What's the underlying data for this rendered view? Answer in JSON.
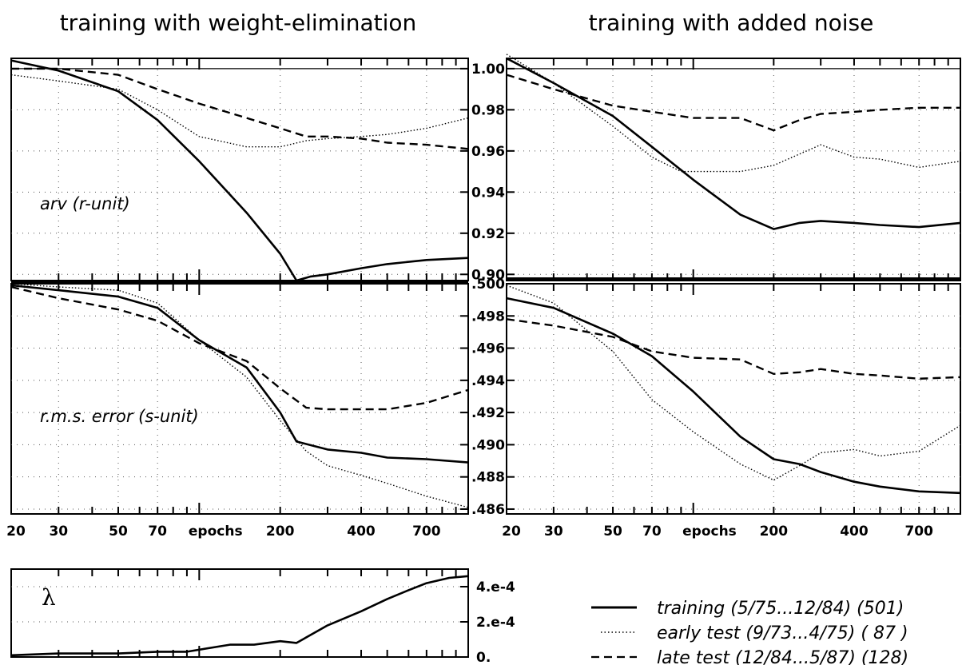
{
  "titles": {
    "left": "training with weight-elimination",
    "right": "training with added noise"
  },
  "panel_labels": {
    "arv": "arv (r-unit)",
    "rms": "r.m.s. error (s-unit)",
    "lambda": "λ"
  },
  "x_axis": {
    "label": "epochs",
    "ticks": [
      "20",
      "30",
      "50",
      "70",
      "200",
      "400",
      "700"
    ]
  },
  "y_ticks": {
    "arv": [
      "1.00",
      "0.98",
      "0.96",
      "0.94",
      "0.92",
      "0.90"
    ],
    "rms": [
      ".500",
      ".498",
      ".496",
      ".494",
      ".492",
      ".490",
      ".488",
      ".486"
    ],
    "lambda": [
      "4.e-4",
      "2.e-4",
      "0."
    ]
  },
  "legend": [
    {
      "label": "training  (5/75...12/84)  (501)",
      "style": "solid"
    },
    {
      "label": "early test  (9/73...4/75)  ( 87 )",
      "style": "dotted"
    },
    {
      "label": "late test  (12/84...5/87)  (128)",
      "style": "dashed"
    }
  ],
  "chart_data": [
    {
      "type": "line",
      "title": "training with weight-elimination",
      "ylabel": "arv (r-unit)",
      "xlabel": "epochs",
      "xscale": "log",
      "xlim": [
        20,
        1000
      ],
      "ylim": [
        0.897,
        1.005
      ],
      "grid": true,
      "series": [
        {
          "name": "training",
          "style": "solid",
          "points": [
            [
              20,
              1.004
            ],
            [
              30,
              0.999
            ],
            [
              50,
              0.989
            ],
            [
              70,
              0.975
            ],
            [
              100,
              0.955
            ],
            [
              150,
              0.93
            ],
            [
              200,
              0.91
            ],
            [
              230,
              0.897
            ],
            [
              260,
              0.899
            ],
            [
              300,
              0.9
            ],
            [
              400,
              0.903
            ],
            [
              500,
              0.905
            ],
            [
              700,
              0.907
            ],
            [
              1000,
              0.908
            ]
          ]
        },
        {
          "name": "early test",
          "style": "dotted",
          "points": [
            [
              20,
              0.997
            ],
            [
              30,
              0.994
            ],
            [
              50,
              0.99
            ],
            [
              70,
              0.98
            ],
            [
              100,
              0.967
            ],
            [
              150,
              0.962
            ],
            [
              200,
              0.962
            ],
            [
              250,
              0.965
            ],
            [
              300,
              0.966
            ],
            [
              400,
              0.967
            ],
            [
              500,
              0.968
            ],
            [
              700,
              0.971
            ],
            [
              1000,
              0.976
            ]
          ]
        },
        {
          "name": "late test",
          "style": "dashed",
          "points": [
            [
              20,
              1.0
            ],
            [
              30,
              1.0
            ],
            [
              50,
              0.997
            ],
            [
              70,
              0.99
            ],
            [
              100,
              0.983
            ],
            [
              150,
              0.976
            ],
            [
              200,
              0.971
            ],
            [
              250,
              0.967
            ],
            [
              300,
              0.967
            ],
            [
              400,
              0.966
            ],
            [
              500,
              0.964
            ],
            [
              700,
              0.963
            ],
            [
              1000,
              0.961
            ]
          ]
        }
      ]
    },
    {
      "type": "line",
      "title": "training with added noise",
      "ylabel": "arv (r-unit)",
      "xlabel": "epochs",
      "xscale": "log",
      "xlim": [
        20,
        1000
      ],
      "ylim": [
        0.897,
        1.005
      ],
      "grid": true,
      "series": [
        {
          "name": "training",
          "style": "solid",
          "points": [
            [
              20,
              1.005
            ],
            [
              30,
              0.993
            ],
            [
              50,
              0.977
            ],
            [
              70,
              0.962
            ],
            [
              100,
              0.946
            ],
            [
              150,
              0.929
            ],
            [
              200,
              0.922
            ],
            [
              250,
              0.925
            ],
            [
              300,
              0.926
            ],
            [
              400,
              0.925
            ],
            [
              500,
              0.924
            ],
            [
              700,
              0.923
            ],
            [
              1000,
              0.925
            ]
          ]
        },
        {
          "name": "early test",
          "style": "dotted",
          "points": [
            [
              20,
              1.007
            ],
            [
              30,
              0.993
            ],
            [
              50,
              0.972
            ],
            [
              70,
              0.957
            ],
            [
              90,
              0.95
            ],
            [
              150,
              0.95
            ],
            [
              200,
              0.953
            ],
            [
              300,
              0.963
            ],
            [
              400,
              0.957
            ],
            [
              500,
              0.956
            ],
            [
              700,
              0.952
            ],
            [
              1000,
              0.955
            ]
          ]
        },
        {
          "name": "late test",
          "style": "dashed",
          "points": [
            [
              20,
              0.997
            ],
            [
              30,
              0.99
            ],
            [
              50,
              0.982
            ],
            [
              70,
              0.979
            ],
            [
              100,
              0.976
            ],
            [
              150,
              0.976
            ],
            [
              200,
              0.97
            ],
            [
              250,
              0.975
            ],
            [
              300,
              0.978
            ],
            [
              400,
              0.979
            ],
            [
              500,
              0.98
            ],
            [
              700,
              0.981
            ],
            [
              1000,
              0.981
            ]
          ]
        }
      ]
    },
    {
      "type": "line",
      "ylabel": "r.m.s. error (s-unit)",
      "xlabel": "epochs",
      "xscale": "log",
      "xlim": [
        20,
        1000
      ],
      "ylim": [
        0.4857,
        0.5
      ],
      "grid": true,
      "series": [
        {
          "name": "training",
          "style": "solid",
          "points": [
            [
              20,
              0.4999
            ],
            [
              30,
              0.4996
            ],
            [
              50,
              0.4992
            ],
            [
              70,
              0.4985
            ],
            [
              100,
              0.4965
            ],
            [
              150,
              0.4948
            ],
            [
              200,
              0.492
            ],
            [
              230,
              0.4902
            ],
            [
              300,
              0.4897
            ],
            [
              400,
              0.4895
            ],
            [
              500,
              0.4892
            ],
            [
              700,
              0.4891
            ],
            [
              1000,
              0.4889
            ]
          ]
        },
        {
          "name": "early test",
          "style": "dotted",
          "points": [
            [
              20,
              0.5
            ],
            [
              30,
              0.4998
            ],
            [
              50,
              0.4996
            ],
            [
              70,
              0.4988
            ],
            [
              100,
              0.4965
            ],
            [
              150,
              0.4942
            ],
            [
              200,
              0.4915
            ],
            [
              250,
              0.4896
            ],
            [
              300,
              0.4887
            ],
            [
              400,
              0.4881
            ],
            [
              500,
              0.4876
            ],
            [
              700,
              0.4868
            ],
            [
              1000,
              0.4861
            ]
          ]
        },
        {
          "name": "late test",
          "style": "dashed",
          "points": [
            [
              20,
              0.4998
            ],
            [
              30,
              0.4991
            ],
            [
              50,
              0.4984
            ],
            [
              70,
              0.4977
            ],
            [
              100,
              0.4963
            ],
            [
              150,
              0.4952
            ],
            [
              200,
              0.4935
            ],
            [
              250,
              0.4923
            ],
            [
              300,
              0.4922
            ],
            [
              400,
              0.4922
            ],
            [
              500,
              0.4922
            ],
            [
              700,
              0.4926
            ],
            [
              1000,
              0.4934
            ]
          ]
        }
      ]
    },
    {
      "type": "line",
      "ylabel": "r.m.s. error (s-unit)",
      "xlabel": "epochs",
      "xscale": "log",
      "xlim": [
        20,
        1000
      ],
      "ylim": [
        0.4857,
        0.5
      ],
      "grid": true,
      "series": [
        {
          "name": "training",
          "style": "solid",
          "points": [
            [
              20,
              0.4991
            ],
            [
              30,
              0.4985
            ],
            [
              50,
              0.4969
            ],
            [
              70,
              0.4955
            ],
            [
              100,
              0.4933
            ],
            [
              150,
              0.4905
            ],
            [
              200,
              0.4891
            ],
            [
              250,
              0.4888
            ],
            [
              300,
              0.4883
            ],
            [
              400,
              0.4877
            ],
            [
              500,
              0.4874
            ],
            [
              700,
              0.4871
            ],
            [
              1000,
              0.487
            ]
          ]
        },
        {
          "name": "early test",
          "style": "dotted",
          "points": [
            [
              20,
              0.4999
            ],
            [
              30,
              0.4988
            ],
            [
              50,
              0.4958
            ],
            [
              70,
              0.4928
            ],
            [
              100,
              0.4908
            ],
            [
              150,
              0.4888
            ],
            [
              200,
              0.4878
            ],
            [
              250,
              0.4887
            ],
            [
              300,
              0.4895
            ],
            [
              400,
              0.4897
            ],
            [
              500,
              0.4893
            ],
            [
              700,
              0.4896
            ],
            [
              1000,
              0.4912
            ]
          ]
        },
        {
          "name": "late test",
          "style": "dashed",
          "points": [
            [
              20,
              0.4978
            ],
            [
              30,
              0.4974
            ],
            [
              50,
              0.4967
            ],
            [
              70,
              0.4958
            ],
            [
              100,
              0.4954
            ],
            [
              150,
              0.4953
            ],
            [
              200,
              0.4944
            ],
            [
              250,
              0.4945
            ],
            [
              300,
              0.4947
            ],
            [
              400,
              0.4944
            ],
            [
              500,
              0.4943
            ],
            [
              700,
              0.4941
            ],
            [
              1000,
              0.4942
            ]
          ]
        }
      ]
    },
    {
      "type": "line",
      "ylabel": "λ",
      "xlabel": "epochs",
      "xscale": "log",
      "xlim": [
        20,
        1000
      ],
      "ylim": [
        0,
        0.0005
      ],
      "series": [
        {
          "name": "",
          "style": "solid",
          "points": [
            [
              20,
              1e-05
            ],
            [
              30,
              2e-05
            ],
            [
              50,
              2e-05
            ],
            [
              70,
              3e-05
            ],
            [
              90,
              3e-05
            ],
            [
              130,
              7e-05
            ],
            [
              160,
              7e-05
            ],
            [
              200,
              9e-05
            ],
            [
              230,
              8e-05
            ],
            [
              300,
              0.00018
            ],
            [
              400,
              0.00026
            ],
            [
              500,
              0.00033
            ],
            [
              600,
              0.00038
            ],
            [
              700,
              0.00042
            ],
            [
              850,
              0.00045
            ],
            [
              1000,
              0.00046
            ]
          ]
        }
      ]
    }
  ]
}
